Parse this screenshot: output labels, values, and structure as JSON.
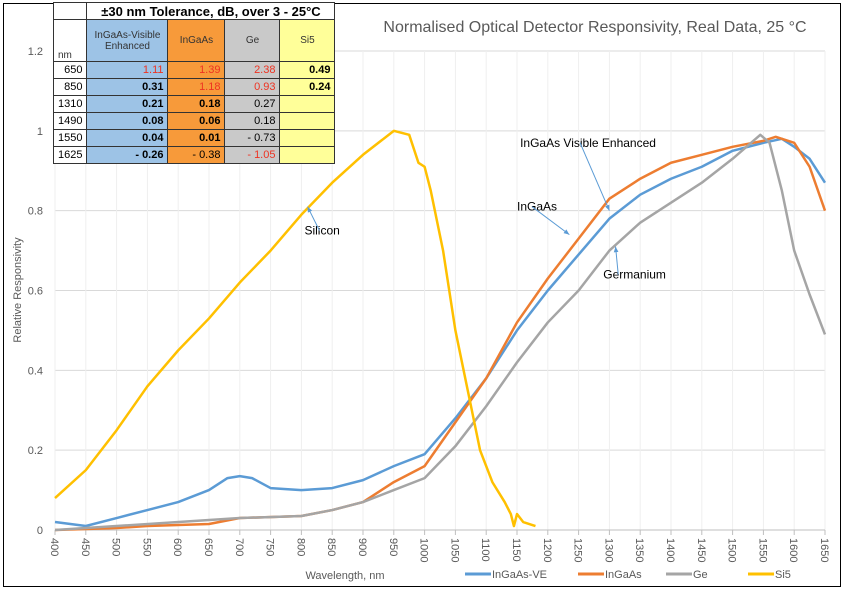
{
  "chart_data": {
    "type": "line",
    "title": "Normalised Optical Detector Responsivity, Real Data, 25 °C",
    "xlabel": "Wavelength, nm",
    "ylabel": "Relative Responsivity",
    "xlim": [
      400,
      1650
    ],
    "ylim": [
      0,
      1.2
    ],
    "xticks": [
      "400",
      "450",
      "500",
      "550",
      "600",
      "650",
      "700",
      "750",
      "800",
      "850",
      "900",
      "950",
      "1000",
      "1050",
      "1100",
      "1150",
      "1200",
      "1250",
      "1300",
      "1350",
      "1400",
      "1450",
      "1500",
      "1550",
      "1600",
      "1650"
    ],
    "yticks": [
      "0",
      "0.2",
      "0.4",
      "0.6",
      "0.8",
      "1",
      "1.2"
    ],
    "grid": true,
    "legend_position": "bottom",
    "series": [
      {
        "name": "InGaAs-VE",
        "color": "#5b9bd5",
        "points": [
          [
            400,
            0.02
          ],
          [
            450,
            0.01
          ],
          [
            500,
            0.03
          ],
          [
            550,
            0.05
          ],
          [
            600,
            0.07
          ],
          [
            650,
            0.1
          ],
          [
            680,
            0.13
          ],
          [
            700,
            0.135
          ],
          [
            720,
            0.13
          ],
          [
            750,
            0.105
          ],
          [
            800,
            0.1
          ],
          [
            850,
            0.105
          ],
          [
            900,
            0.125
          ],
          [
            950,
            0.16
          ],
          [
            1000,
            0.19
          ],
          [
            1050,
            0.28
          ],
          [
            1100,
            0.38
          ],
          [
            1150,
            0.5
          ],
          [
            1200,
            0.6
          ],
          [
            1250,
            0.69
          ],
          [
            1300,
            0.78
          ],
          [
            1350,
            0.84
          ],
          [
            1400,
            0.88
          ],
          [
            1450,
            0.91
          ],
          [
            1500,
            0.95
          ],
          [
            1550,
            0.97
          ],
          [
            1580,
            0.98
          ],
          [
            1600,
            0.96
          ],
          [
            1625,
            0.93
          ],
          [
            1650,
            0.87
          ]
        ]
      },
      {
        "name": "InGaAs",
        "color": "#ed7d31",
        "points": [
          [
            400,
            0.0
          ],
          [
            500,
            0.005
          ],
          [
            550,
            0.01
          ],
          [
            650,
            0.015
          ],
          [
            700,
            0.03
          ],
          [
            800,
            0.035
          ],
          [
            850,
            0.05
          ],
          [
            900,
            0.07
          ],
          [
            950,
            0.12
          ],
          [
            1000,
            0.16
          ],
          [
            1050,
            0.27
          ],
          [
            1100,
            0.38
          ],
          [
            1150,
            0.52
          ],
          [
            1200,
            0.63
          ],
          [
            1250,
            0.73
          ],
          [
            1300,
            0.83
          ],
          [
            1350,
            0.88
          ],
          [
            1400,
            0.92
          ],
          [
            1450,
            0.94
          ],
          [
            1500,
            0.96
          ],
          [
            1550,
            0.975
          ],
          [
            1570,
            0.985
          ],
          [
            1600,
            0.97
          ],
          [
            1625,
            0.91
          ],
          [
            1650,
            0.8
          ]
        ]
      },
      {
        "name": "Ge",
        "color": "#a5a5a5",
        "points": [
          [
            400,
            0.0
          ],
          [
            700,
            0.03
          ],
          [
            800,
            0.035
          ],
          [
            850,
            0.05
          ],
          [
            900,
            0.07
          ],
          [
            950,
            0.1
          ],
          [
            1000,
            0.13
          ],
          [
            1050,
            0.21
          ],
          [
            1100,
            0.31
          ],
          [
            1150,
            0.42
          ],
          [
            1200,
            0.52
          ],
          [
            1250,
            0.6
          ],
          [
            1300,
            0.7
          ],
          [
            1350,
            0.77
          ],
          [
            1400,
            0.82
          ],
          [
            1450,
            0.87
          ],
          [
            1500,
            0.93
          ],
          [
            1530,
            0.97
          ],
          [
            1545,
            0.99
          ],
          [
            1560,
            0.97
          ],
          [
            1580,
            0.85
          ],
          [
            1600,
            0.7
          ],
          [
            1625,
            0.59
          ],
          [
            1650,
            0.49
          ]
        ]
      },
      {
        "name": "Si5",
        "color": "#ffc000",
        "points": [
          [
            400,
            0.08
          ],
          [
            450,
            0.15
          ],
          [
            500,
            0.25
          ],
          [
            550,
            0.36
          ],
          [
            600,
            0.45
          ],
          [
            650,
            0.53
          ],
          [
            700,
            0.62
          ],
          [
            750,
            0.7
          ],
          [
            800,
            0.79
          ],
          [
            850,
            0.87
          ],
          [
            900,
            0.94
          ],
          [
            950,
            1.0
          ],
          [
            975,
            0.99
          ],
          [
            990,
            0.92
          ],
          [
            1000,
            0.91
          ],
          [
            1010,
            0.85
          ],
          [
            1030,
            0.7
          ],
          [
            1050,
            0.5
          ],
          [
            1070,
            0.35
          ],
          [
            1090,
            0.2
          ],
          [
            1110,
            0.12
          ],
          [
            1130,
            0.07
          ],
          [
            1140,
            0.04
          ],
          [
            1145,
            0.01
          ],
          [
            1150,
            0.04
          ],
          [
            1160,
            0.02
          ],
          [
            1180,
            0.01
          ]
        ]
      }
    ],
    "annotations": [
      {
        "text": "Silicon",
        "x": 805,
        "y": 0.74,
        "arrow_to": [
          810,
          0.81
        ]
      },
      {
        "text": "InGaAs Visible Enhanced",
        "x": 1155,
        "y": 0.96,
        "arrow_to": [
          1300,
          0.8
        ]
      },
      {
        "text": "InGaAs",
        "x": 1150,
        "y": 0.8,
        "arrow_to": [
          1235,
          0.74
        ]
      },
      {
        "text": "Germanium",
        "x": 1290,
        "y": 0.63,
        "arrow_to": [
          1310,
          0.71
        ]
      }
    ]
  },
  "table": {
    "title": "±30 nm Tolerance, dB, over 3 - 25°C",
    "unit_label": "nm",
    "headers": [
      "InGaAs-Visible Enhanced",
      "InGaAs",
      "Ge",
      "Si5"
    ],
    "rows": [
      {
        "nm": "650",
        "cells": [
          {
            "v": "1.11",
            "red": true
          },
          {
            "v": "1.39",
            "red": true
          },
          {
            "v": "2.38",
            "red": true
          },
          {
            "v": "0.49",
            "bold": true
          }
        ]
      },
      {
        "nm": "850",
        "cells": [
          {
            "v": "0.31",
            "bold": true
          },
          {
            "v": "1.18",
            "red": true
          },
          {
            "v": "0.93",
            "red": true
          },
          {
            "v": "0.24",
            "bold": true
          }
        ]
      },
      {
        "nm": "1310",
        "cells": [
          {
            "v": "0.21",
            "bold": true
          },
          {
            "v": "0.18",
            "bold": true
          },
          {
            "v": "0.27"
          },
          {
            "v": ""
          }
        ]
      },
      {
        "nm": "1490",
        "cells": [
          {
            "v": "0.08",
            "bold": true
          },
          {
            "v": "0.06",
            "bold": true
          },
          {
            "v": "0.18"
          },
          {
            "v": ""
          }
        ]
      },
      {
        "nm": "1550",
        "cells": [
          {
            "v": "0.04",
            "bold": true
          },
          {
            "v": "0.01",
            "bold": true
          },
          {
            "v": "- 0.73"
          },
          {
            "v": ""
          }
        ]
      },
      {
        "nm": "1625",
        "nm_prefix": "-",
        "cells": [
          {
            "v": "0.26",
            "bold": true
          },
          {
            "v": "- 0.38"
          },
          {
            "v": "- 1.05",
            "red": true
          },
          {
            "v": ""
          }
        ]
      }
    ]
  }
}
